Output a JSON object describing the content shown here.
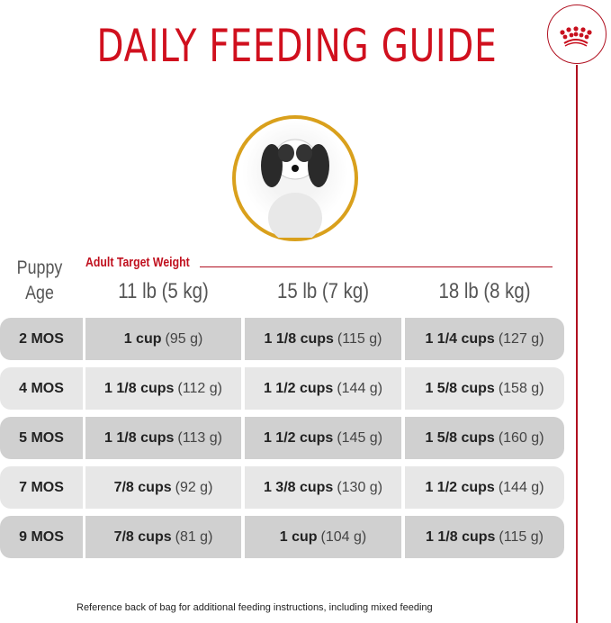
{
  "title": "DAILY FEEDING GUIDE",
  "colors": {
    "brand_red": "#d0101e",
    "gold_ring": "#d9a01c"
  },
  "header": {
    "age_label_1": "Puppy",
    "age_label_2": "Age",
    "adult_target_weight": "Adult Target Weight",
    "weights": [
      "11 lb (5 kg)",
      "15 lb (7 kg)",
      "18 lb (8 kg)"
    ]
  },
  "rows": [
    {
      "age": "2 MOS",
      "cells": [
        {
          "cups": "1 cup",
          "grams": "(95 g)"
        },
        {
          "cups": "1 1/8 cups",
          "grams": "(115 g)"
        },
        {
          "cups": "1 1/4 cups",
          "grams": "(127 g)"
        }
      ]
    },
    {
      "age": "4 MOS",
      "cells": [
        {
          "cups": "1 1/8 cups",
          "grams": "(112 g)"
        },
        {
          "cups": "1 1/2 cups",
          "grams": "(144 g)"
        },
        {
          "cups": "1 5/8 cups",
          "grams": "(158 g)"
        }
      ]
    },
    {
      "age": "5 MOS",
      "cells": [
        {
          "cups": "1 1/8 cups",
          "grams": "(113 g)"
        },
        {
          "cups": "1 1/2 cups",
          "grams": "(145 g)"
        },
        {
          "cups": "1 5/8 cups",
          "grams": "(160 g)"
        }
      ]
    },
    {
      "age": "7 MOS",
      "cells": [
        {
          "cups": "7/8 cups",
          "grams": "(92 g)"
        },
        {
          "cups": "1 3/8 cups",
          "grams": "(130 g)"
        },
        {
          "cups": "1 1/2 cups",
          "grams": "(144 g)"
        }
      ]
    },
    {
      "age": "9 MOS",
      "cells": [
        {
          "cups": "7/8 cups",
          "grams": "(81 g)"
        },
        {
          "cups": "1 cup",
          "grams": "(104 g)"
        },
        {
          "cups": "1 1/8 cups",
          "grams": "(115 g)"
        }
      ]
    }
  ],
  "footer": "Reference back of bag for additional feeding instructions, including mixed feeding"
}
